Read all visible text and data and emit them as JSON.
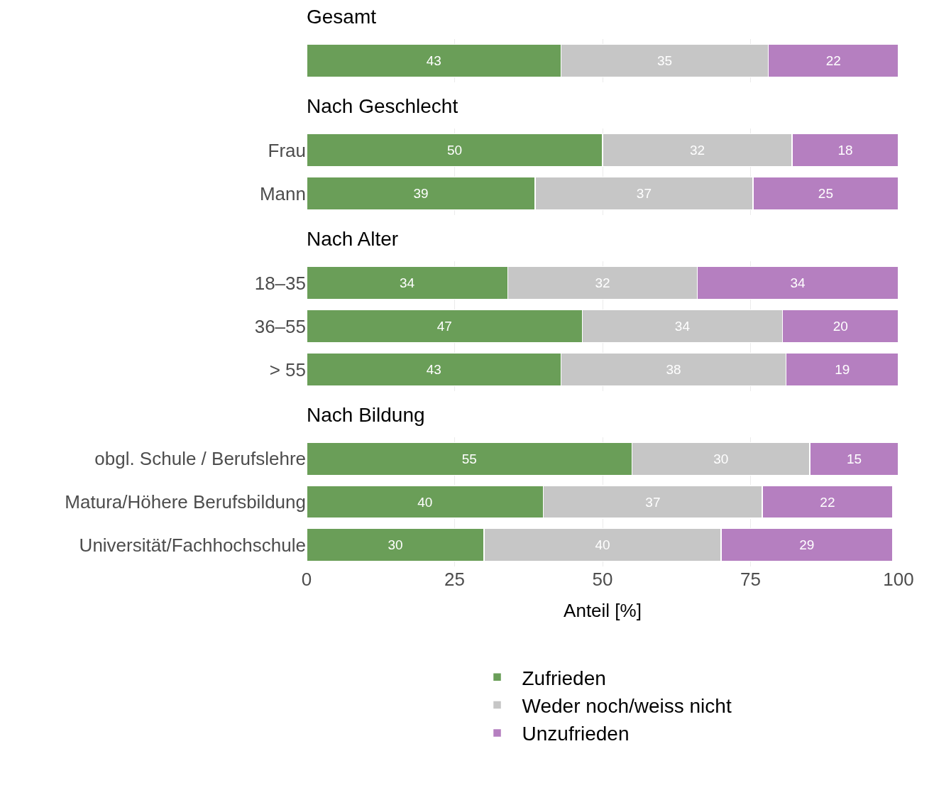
{
  "chart_data": [
    {
      "type": "bar",
      "orientation": "horizontal",
      "stacked": true,
      "title": "Gesamt",
      "categories": [
        null
      ],
      "series": [
        {
          "color": "#6a9e58",
          "values": [
            43
          ]
        },
        {
          "color": "#c6c6c6",
          "values": [
            35
          ]
        },
        {
          "color": "#b57fc0",
          "values": [
            22
          ]
        }
      ],
      "xlim": [
        0,
        100
      ],
      "xticks": [
        0,
        25,
        50,
        75,
        100
      ],
      "grid": "x",
      "data_labels": true,
      "tick_labels": false
    },
    {
      "type": "bar",
      "orientation": "horizontal",
      "stacked": true,
      "title": "Nach Geschlecht",
      "categories": [
        "Frau",
        "Mann"
      ],
      "series": [
        {
          "color": "#6a9e58",
          "values": [
            50,
            38.6
          ],
          "value_labels": [
            "50",
            "39"
          ]
        },
        {
          "color": "#c6c6c6",
          "values": [
            32,
            36.8
          ],
          "value_labels": [
            "32",
            "37"
          ]
        },
        {
          "color": "#b57fc0",
          "values": [
            18,
            24.6
          ],
          "value_labels": [
            "18",
            "25"
          ]
        }
      ],
      "xlim": [
        0,
        100
      ],
      "xticks": [
        0,
        25,
        50,
        75,
        100
      ],
      "grid": "x",
      "tick_labels": "y"
    },
    {
      "type": "bar",
      "orientation": "horizontal",
      "stacked": true,
      "title": "Nach Alter",
      "categories": [
        "18–35",
        "36–55",
        "> 55"
      ],
      "series": [
        {
          "color": "#6a9e58",
          "values": [
            34,
            46.6,
            43
          ],
          "value_labels": [
            "34",
            "47",
            "43"
          ]
        },
        {
          "color": "#c6c6c6",
          "values": [
            32,
            33.8,
            38
          ],
          "value_labels": [
            "32",
            "34",
            "38"
          ]
        },
        {
          "color": "#b57fc0",
          "values": [
            34,
            19.6,
            19
          ],
          "value_labels": [
            "34",
            "20",
            "19"
          ]
        }
      ],
      "xlim": [
        0,
        100
      ],
      "xticks": [
        0,
        25,
        50,
        75,
        100
      ],
      "grid": "x",
      "tick_labels": "y"
    },
    {
      "type": "bar",
      "orientation": "horizontal",
      "stacked": true,
      "title": "Nach Bildung",
      "xlabel": "Anteil [%]",
      "categories": [
        "obgl. Schule / Berufslehre",
        "Matura/Höhere Berufsbildung",
        "Universität/Fachhochschule"
      ],
      "series": [
        {
          "name": "Zufrieden",
          "color": "#6a9e58",
          "values": [
            55,
            40,
            30
          ]
        },
        {
          "name": "Weder noch/weiss nicht",
          "color": "#c6c6c6",
          "values": [
            30,
            37,
            40
          ]
        },
        {
          "name": "Unzufrieden",
          "color": "#b57fc0",
          "values": [
            15,
            22,
            29
          ]
        }
      ],
      "xlim": [
        0,
        100
      ],
      "xticks": [
        0,
        25,
        50,
        75,
        100
      ],
      "grid": "x",
      "data_labels": true,
      "legend": "bottom"
    }
  ]
}
